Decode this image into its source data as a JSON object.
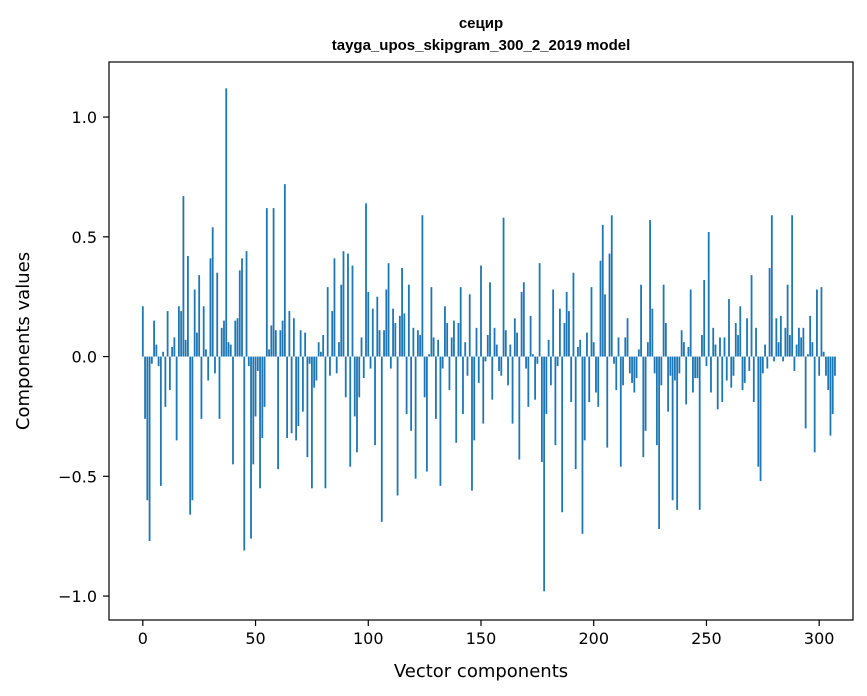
{
  "chart_data": {
    "type": "bar",
    "title": "сецир",
    "subtitle": "tayga_upos_skipgram_300_2_2019 model",
    "xlabel": "Vector components",
    "ylabel": "Components values",
    "xlim": [
      -15,
      315
    ],
    "ylim": [
      -1.1,
      1.23
    ],
    "xticks": [
      0,
      50,
      100,
      150,
      200,
      250,
      300
    ],
    "yticks": [
      -1.0,
      -0.5,
      0.0,
      0.5,
      1.0
    ],
    "ytick_labels": [
      "−1.0",
      "−0.5",
      "0.0",
      "0.5",
      "1.0"
    ],
    "bar_color": "#1f77b4",
    "grid": false,
    "series": [
      {
        "values": [
          0.21,
          -0.26,
          -0.6,
          -0.77,
          -0.03,
          0.15,
          0.05,
          -0.04,
          -0.54,
          0.02,
          -0.21,
          0.19,
          -0.14,
          0.04,
          0.08,
          -0.35,
          0.21,
          0.19,
          0.67,
          0.07,
          0.42,
          -0.66,
          -0.6,
          0.28,
          0.1,
          0.34,
          -0.26,
          0.21,
          0.03,
          -0.1,
          0.41,
          0.54,
          -0.07,
          0.35,
          -0.26,
          0.12,
          0.15,
          1.12,
          0.06,
          0.05,
          -0.45,
          0.15,
          0.16,
          0.36,
          0.41,
          -0.81,
          0.44,
          -0.04,
          -0.76,
          -0.45,
          -0.25,
          -0.06,
          -0.55,
          -0.34,
          -0.21,
          0.62,
          0.03,
          0.13,
          0.62,
          0.11,
          -0.47,
          0.11,
          0.15,
          0.72,
          -0.34,
          0.19,
          -0.32,
          0.16,
          -0.35,
          -0.29,
          0.11,
          -0.23,
          0.1,
          -0.42,
          -0.03,
          -0.55,
          -0.13,
          -0.1,
          0.06,
          0.02,
          0.09,
          -0.55,
          0.29,
          -0.08,
          0.19,
          0.41,
          -0.07,
          0.06,
          0.3,
          0.44,
          -0.17,
          0.43,
          -0.46,
          0.38,
          -0.25,
          -0.4,
          -0.17,
          0.08,
          -0.09,
          0.64,
          0.27,
          -0.05,
          0.2,
          -0.37,
          0.25,
          0.11,
          -0.69,
          0.11,
          0.28,
          0.39,
          -0.05,
          0.2,
          0.14,
          -0.58,
          0.17,
          0.37,
          0.18,
          -0.24,
          0.3,
          -0.31,
          0.12,
          -0.51,
          0.11,
          0.09,
          0.59,
          -0.17,
          -0.48,
          0.01,
          0.29,
          0.08,
          -0.26,
          0.07,
          -0.54,
          -0.05,
          0.21,
          0.14,
          -0.14,
          0.08,
          0.15,
          -0.36,
          0.14,
          0.29,
          -0.24,
          0.06,
          -0.08,
          0.26,
          -0.56,
          -0.35,
          0.12,
          -0.11,
          0.38,
          -0.28,
          -0.02,
          0.09,
          0.31,
          -0.18,
          0.12,
          0.05,
          -0.06,
          -0.08,
          0.58,
          0.11,
          -0.12,
          0.05,
          -0.28,
          0.16,
          0.1,
          -0.43,
          0.27,
          0.31,
          -0.05,
          -0.21,
          0.17,
          0.01,
          -0.18,
          -0.03,
          0.39,
          -0.44,
          -0.98,
          -0.24,
          0.07,
          -0.12,
          0.28,
          -0.37,
          -0.04,
          0.2,
          -0.65,
          0.14,
          0.27,
          0.19,
          -0.19,
          0.35,
          -0.47,
          0.04,
          0.07,
          -0.74,
          -0.35,
          0.1,
          -0.19,
          0.29,
          0.06,
          -0.15,
          -0.21,
          0.4,
          0.55,
          0.26,
          -0.38,
          0.43,
          0.59,
          -0.03,
          -0.14,
          0.08,
          -0.46,
          -0.12,
          0.08,
          0.16,
          -0.07,
          -0.11,
          -0.15,
          -0.09,
          0.03,
          0.3,
          -0.42,
          -0.31,
          0.06,
          0.57,
          0.2,
          -0.07,
          -0.37,
          -0.72,
          -0.12,
          0.3,
          0.14,
          -0.23,
          -0.08,
          -0.6,
          -0.1,
          -0.64,
          -0.07,
          0.11,
          0.06,
          -0.2,
          0.04,
          0.28,
          -0.15,
          -0.09,
          -0.09,
          -0.64,
          0.09,
          0.32,
          -0.04,
          0.52,
          -0.15,
          0.12,
          0.05,
          -0.22,
          0.08,
          -0.19,
          0.08,
          -0.1,
          0.24,
          -0.13,
          -0.08,
          0.14,
          0.09,
          0.21,
          -0.14,
          -0.11,
          0.16,
          -0.06,
          0.34,
          -0.19,
          0.12,
          -0.46,
          -0.52,
          -0.07,
          0.05,
          -0.05,
          0.37,
          0.59,
          -0.02,
          0.16,
          0.06,
          0.17,
          -0.02,
          0.12,
          0.3,
          0.09,
          0.59,
          -0.06,
          0.05,
          0.12,
          0.08,
          0.12,
          -0.3,
          0.01,
          0.17,
          0.06,
          -0.4,
          0.28,
          -0.08,
          0.29,
          0.02,
          -0.08,
          -0.14,
          -0.33,
          -0.24,
          -0.08
        ]
      }
    ]
  }
}
